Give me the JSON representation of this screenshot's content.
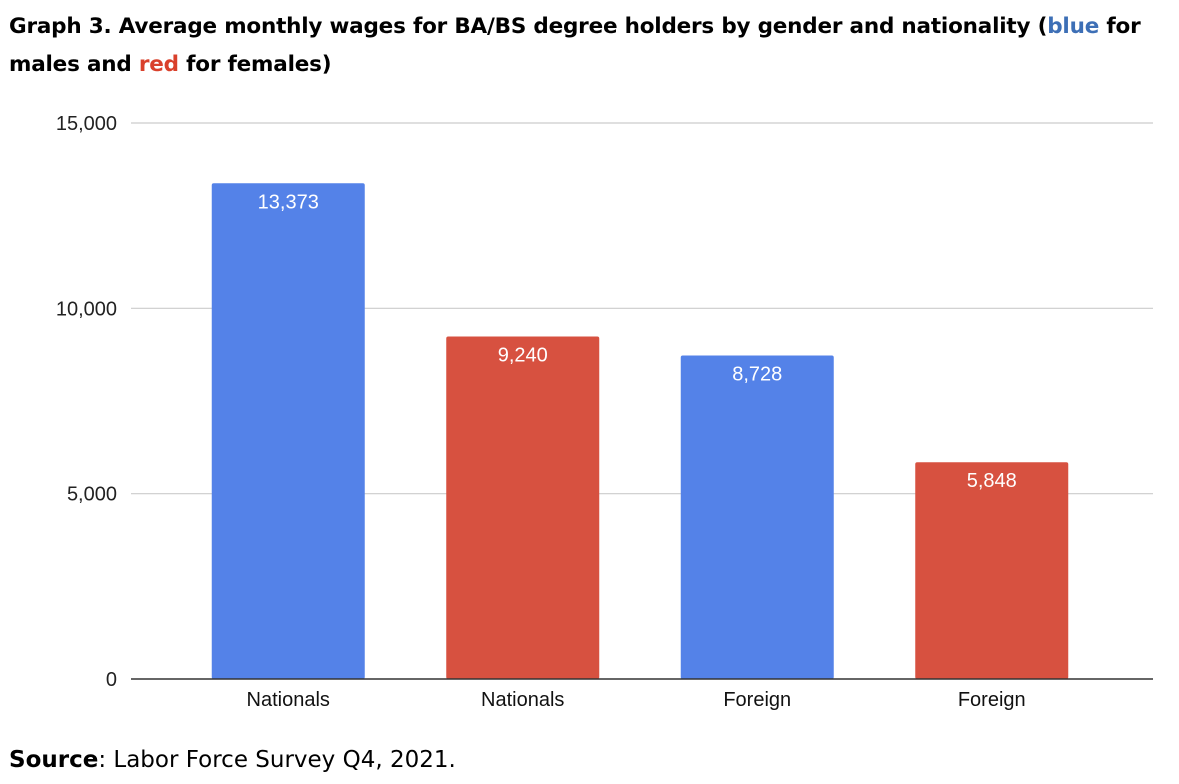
{
  "title": {
    "part1": "Graph 3. Average monthly wages for BA/BS degree holders by gender and nationality (",
    "blue_word": "blue",
    "part2": " for males and ",
    "red_word": "red",
    "part3": " for females)"
  },
  "source": {
    "label": "Source",
    "text": ": Labor Force Survey Q4, 2021."
  },
  "colors": {
    "male": "#5482e8",
    "female": "#d75140",
    "grid": "#cccccc",
    "axis": "#333333",
    "title_blue": "#3d6fb6",
    "title_red": "#d9402b"
  },
  "chart_data": {
    "type": "bar",
    "title": "",
    "xlabel": "",
    "ylabel": "",
    "ylim": [
      0,
      15000
    ],
    "yticks": [
      0,
      5000,
      10000,
      15000
    ],
    "ytick_labels": [
      "0",
      "5,000",
      "10,000",
      "15,000"
    ],
    "grid": true,
    "legend": "none",
    "categories": [
      "Nationals",
      "Nationals",
      "Foreign",
      "Foreign"
    ],
    "values": [
      13373,
      9240,
      8728,
      5848
    ],
    "value_labels": [
      "13,373",
      "9,240",
      "8,728",
      "5,848"
    ],
    "bar_colors": [
      "#5482e8",
      "#d75140",
      "#5482e8",
      "#d75140"
    ]
  }
}
